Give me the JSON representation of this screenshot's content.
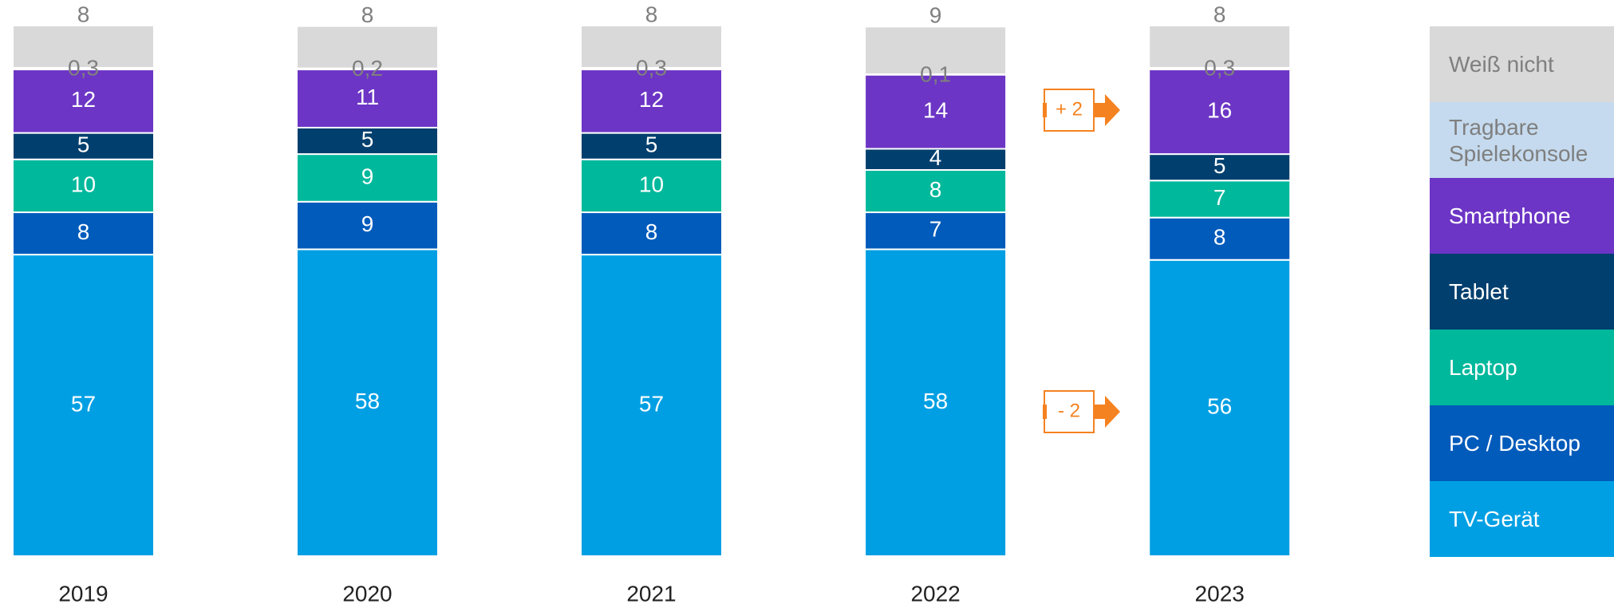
{
  "chart_data": {
    "type": "stacked-bar",
    "categories": [
      "2019",
      "2020",
      "2021",
      "2022",
      "2023"
    ],
    "series": [
      {
        "name": "TV-Gerät",
        "color": "#009fe3",
        "values": [
          57,
          58,
          57,
          58,
          56
        ]
      },
      {
        "name": "PC / Desktop",
        "color": "#005bbb",
        "values": [
          8,
          9,
          8,
          7,
          8
        ]
      },
      {
        "name": "Laptop",
        "color": "#00b89c",
        "values": [
          10,
          9,
          10,
          8,
          7
        ]
      },
      {
        "name": "Tablet",
        "color": "#003f6e",
        "values": [
          5,
          5,
          5,
          4,
          5
        ]
      },
      {
        "name": "Smartphone",
        "color": "#6c35c5",
        "values": [
          12,
          11,
          12,
          14,
          16
        ]
      },
      {
        "name": "Tragbare Spielekonsole",
        "color": "#c5daee",
        "values": [
          0.3,
          0.2,
          0.3,
          0.1,
          0.3
        ],
        "value_labels": [
          "0,3",
          "0,2",
          "0,3",
          "0,1",
          "0,3"
        ]
      },
      {
        "name": "Weiß nicht",
        "color": "#d9d9d9",
        "values": [
          8,
          8,
          8,
          9,
          8
        ]
      }
    ],
    "annotations": [
      {
        "text": "+ 2"
      },
      {
        "text": "- 2"
      }
    ]
  }
}
